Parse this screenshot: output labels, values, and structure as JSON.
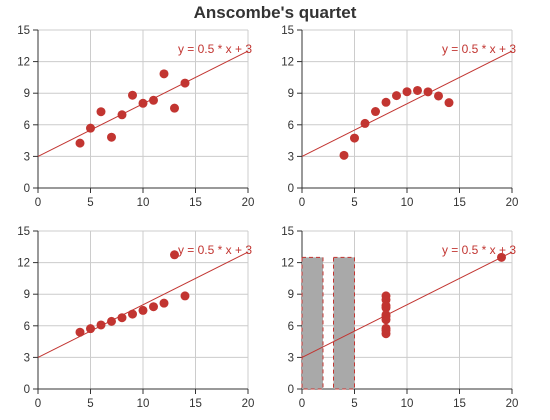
{
  "title": "Anscombe's quartet",
  "colors": {
    "point": "#c23531",
    "grid": "#cccccc",
    "axis": "#333333",
    "line": "#c23531",
    "bar_fill": "#a9a9a9",
    "bar_border": "#c23531"
  },
  "chart_data": [
    {
      "type": "scatter",
      "xlim": [
        0,
        20
      ],
      "ylim": [
        0,
        15
      ],
      "xticks": [
        0,
        5,
        10,
        15,
        20
      ],
      "yticks": [
        0,
        3,
        6,
        9,
        12,
        15
      ],
      "grid": true,
      "points": [
        [
          10,
          8.04
        ],
        [
          8,
          6.95
        ],
        [
          13,
          7.58
        ],
        [
          9,
          8.81
        ],
        [
          11,
          8.33
        ],
        [
          14,
          9.96
        ],
        [
          6,
          7.24
        ],
        [
          4,
          4.26
        ],
        [
          12,
          10.84
        ],
        [
          7,
          4.82
        ],
        [
          5,
          5.68
        ]
      ],
      "fit_line": {
        "from": [
          0,
          3
        ],
        "to": [
          20,
          13
        ],
        "label": "y = 0.5 * x + 3"
      }
    },
    {
      "type": "scatter",
      "xlim": [
        0,
        20
      ],
      "ylim": [
        0,
        15
      ],
      "xticks": [
        0,
        5,
        10,
        15,
        20
      ],
      "yticks": [
        0,
        3,
        6,
        9,
        12,
        15
      ],
      "grid": true,
      "points": [
        [
          10,
          9.14
        ],
        [
          8,
          8.14
        ],
        [
          13,
          8.74
        ],
        [
          9,
          8.77
        ],
        [
          11,
          9.26
        ],
        [
          14,
          8.1
        ],
        [
          6,
          6.13
        ],
        [
          4,
          3.1
        ],
        [
          12,
          9.13
        ],
        [
          7,
          7.26
        ],
        [
          5,
          4.74
        ]
      ],
      "fit_line": {
        "from": [
          0,
          3
        ],
        "to": [
          20,
          13
        ],
        "label": "y = 0.5 * x + 3"
      }
    },
    {
      "type": "scatter",
      "xlim": [
        0,
        20
      ],
      "ylim": [
        0,
        15
      ],
      "xticks": [
        0,
        5,
        10,
        15,
        20
      ],
      "yticks": [
        0,
        3,
        6,
        9,
        12,
        15
      ],
      "grid": true,
      "points": [
        [
          10,
          7.46
        ],
        [
          8,
          6.77
        ],
        [
          13,
          12.74
        ],
        [
          9,
          7.11
        ],
        [
          11,
          7.81
        ],
        [
          14,
          8.84
        ],
        [
          6,
          6.08
        ],
        [
          4,
          5.39
        ],
        [
          12,
          8.15
        ],
        [
          7,
          6.42
        ],
        [
          5,
          5.73
        ]
      ],
      "fit_line": {
        "from": [
          0,
          3
        ],
        "to": [
          20,
          13
        ],
        "label": "y = 0.5 * x + 3"
      }
    },
    {
      "type": "scatter",
      "xlim": [
        0,
        20
      ],
      "ylim": [
        0,
        15
      ],
      "xticks": [
        0,
        5,
        10,
        15,
        20
      ],
      "yticks": [
        0,
        3,
        6,
        9,
        12,
        15
      ],
      "grid": true,
      "points": [
        [
          8,
          6.58
        ],
        [
          8,
          5.76
        ],
        [
          8,
          7.71
        ],
        [
          8,
          8.84
        ],
        [
          8,
          8.47
        ],
        [
          8,
          7.04
        ],
        [
          8,
          5.25
        ],
        [
          19,
          12.5
        ],
        [
          8,
          5.56
        ],
        [
          8,
          7.91
        ],
        [
          8,
          6.89
        ]
      ],
      "bars": [
        {
          "x0": 0,
          "x1": 2,
          "y": 12.5
        },
        {
          "x0": 3,
          "x1": 5,
          "y": 12.5
        }
      ],
      "fit_line": {
        "from": [
          0,
          3
        ],
        "to": [
          20,
          13
        ],
        "label": "y = 0.5 * x + 3"
      }
    }
  ]
}
